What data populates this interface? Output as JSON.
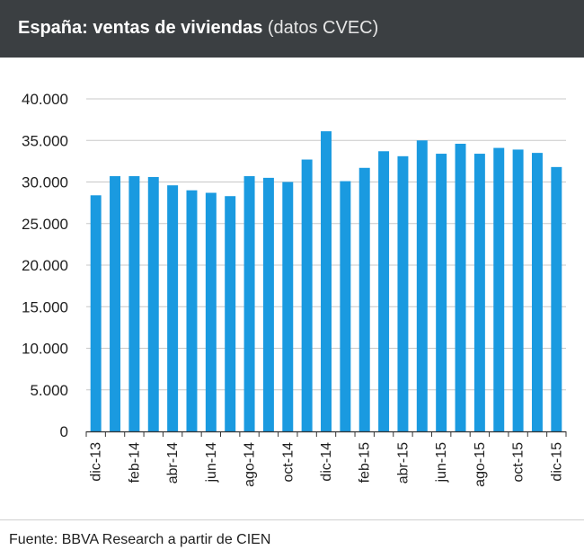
{
  "header": {
    "title_bold": "España: ventas de viviendas",
    "title_rest": " (datos CVEC)"
  },
  "footer": {
    "source": "Fuente: BBVA Research a partir de CIEN"
  },
  "colors": {
    "bar": "#1a9ae0",
    "header_bg": "#3b3f42",
    "grid": "#c8c8c8"
  },
  "chart_data": {
    "type": "bar",
    "title": "España: ventas de viviendas (datos CVEC)",
    "xlabel": "",
    "ylabel": "",
    "ylim": [
      0,
      40000
    ],
    "yticks": [
      0,
      5000,
      10000,
      15000,
      20000,
      25000,
      30000,
      35000,
      40000
    ],
    "ytick_labels": [
      "0",
      "5.000",
      "10.000",
      "15.000",
      "20.000",
      "25.000",
      "30.000",
      "35.000",
      "40.000"
    ],
    "grid": true,
    "categories": [
      "dic-13",
      "ene-14",
      "feb-14",
      "mar-14",
      "abr-14",
      "may-14",
      "jun-14",
      "jul-14",
      "ago-14",
      "sep-14",
      "oct-14",
      "nov-14",
      "dic-14",
      "ene-15",
      "feb-15",
      "mar-15",
      "abr-15",
      "may-15",
      "jun-15",
      "jul-15",
      "ago-15",
      "sep-15",
      "oct-15",
      "nov-15",
      "dic-15"
    ],
    "x_tick_labels": [
      "dic-13",
      "",
      "feb-14",
      "",
      "abr-14",
      "",
      "jun-14",
      "",
      "ago-14",
      "",
      "oct-14",
      "",
      "dic-14",
      "",
      "feb-15",
      "",
      "abr-15",
      "",
      "jun-15",
      "",
      "ago-15",
      "",
      "oct-15",
      "",
      "dic-15"
    ],
    "series": [
      {
        "values": [
          28400,
          30700,
          30700,
          30600,
          29600,
          29000,
          28700,
          28300,
          30700,
          30500,
          30000,
          32700,
          36100,
          30100,
          31700,
          33700,
          33100,
          35000,
          33400,
          34600,
          33400,
          34100,
          33900,
          33500,
          31800
        ]
      }
    ]
  }
}
